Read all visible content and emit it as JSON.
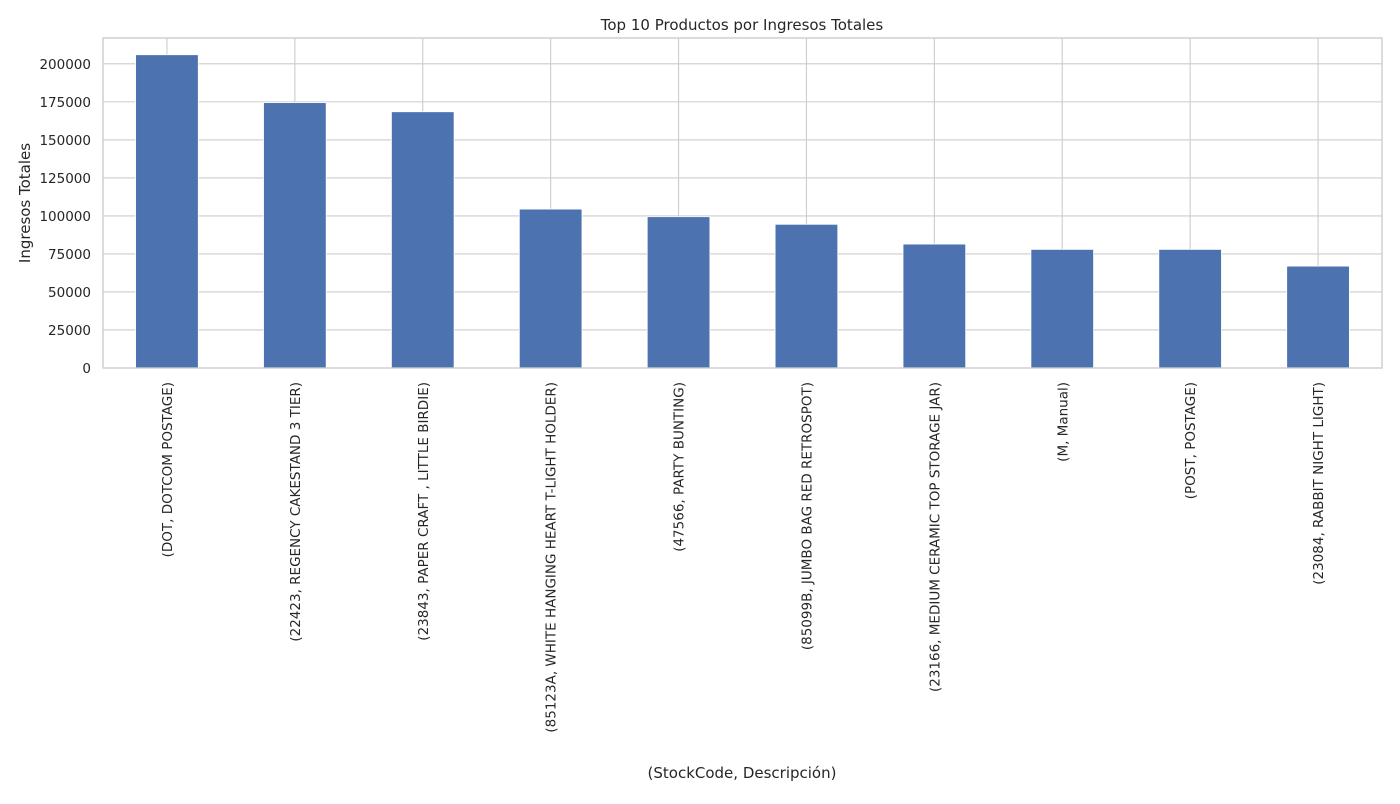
{
  "chart_data": {
    "type": "bar",
    "title": "Top 10 Productos por Ingresos Totales",
    "xlabel": "(StockCode, Descripción)",
    "ylabel": "Ingresos Totales",
    "ylim": [
      0,
      217000
    ],
    "yticks": [
      0,
      25000,
      50000,
      75000,
      100000,
      125000,
      150000,
      175000,
      200000
    ],
    "grid": true,
    "legend": false,
    "colors": {
      "bar": "#4c72b0",
      "grid": "#cccccc",
      "frame": "#cccccc",
      "background": "#ffffff"
    },
    "categories": [
      "(DOT, DOTCOM POSTAGE)",
      "(22423, REGENCY CAKESTAND 3 TIER)",
      "(23843, PAPER CRAFT , LITTLE BIRDIE)",
      "(85123A, WHITE HANGING HEART T-LIGHT HOLDER)",
      "(47566, PARTY BUNTING)",
      "(85099B, JUMBO BAG RED RETROSPOT)",
      "(23166, MEDIUM CERAMIC TOP STORAGE JAR)",
      "(M, Manual)",
      "(POST, POSTAGE)",
      "(23084, RABBIT NIGHT LIGHT)"
    ],
    "values": [
      206000,
      174500,
      168500,
      104500,
      99500,
      94500,
      81500,
      78000,
      78000,
      67000
    ]
  }
}
